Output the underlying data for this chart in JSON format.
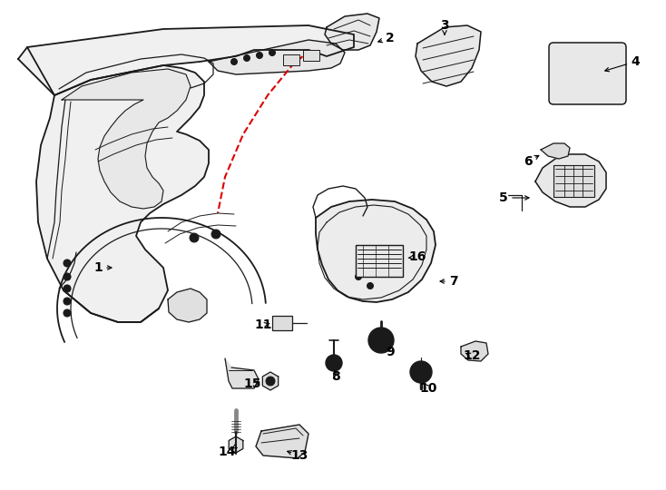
{
  "background_color": "#ffffff",
  "line_color": "#1a1a1a",
  "red_color": "#dd0000",
  "figsize": [
    7.34,
    5.4
  ],
  "dpi": 100
}
